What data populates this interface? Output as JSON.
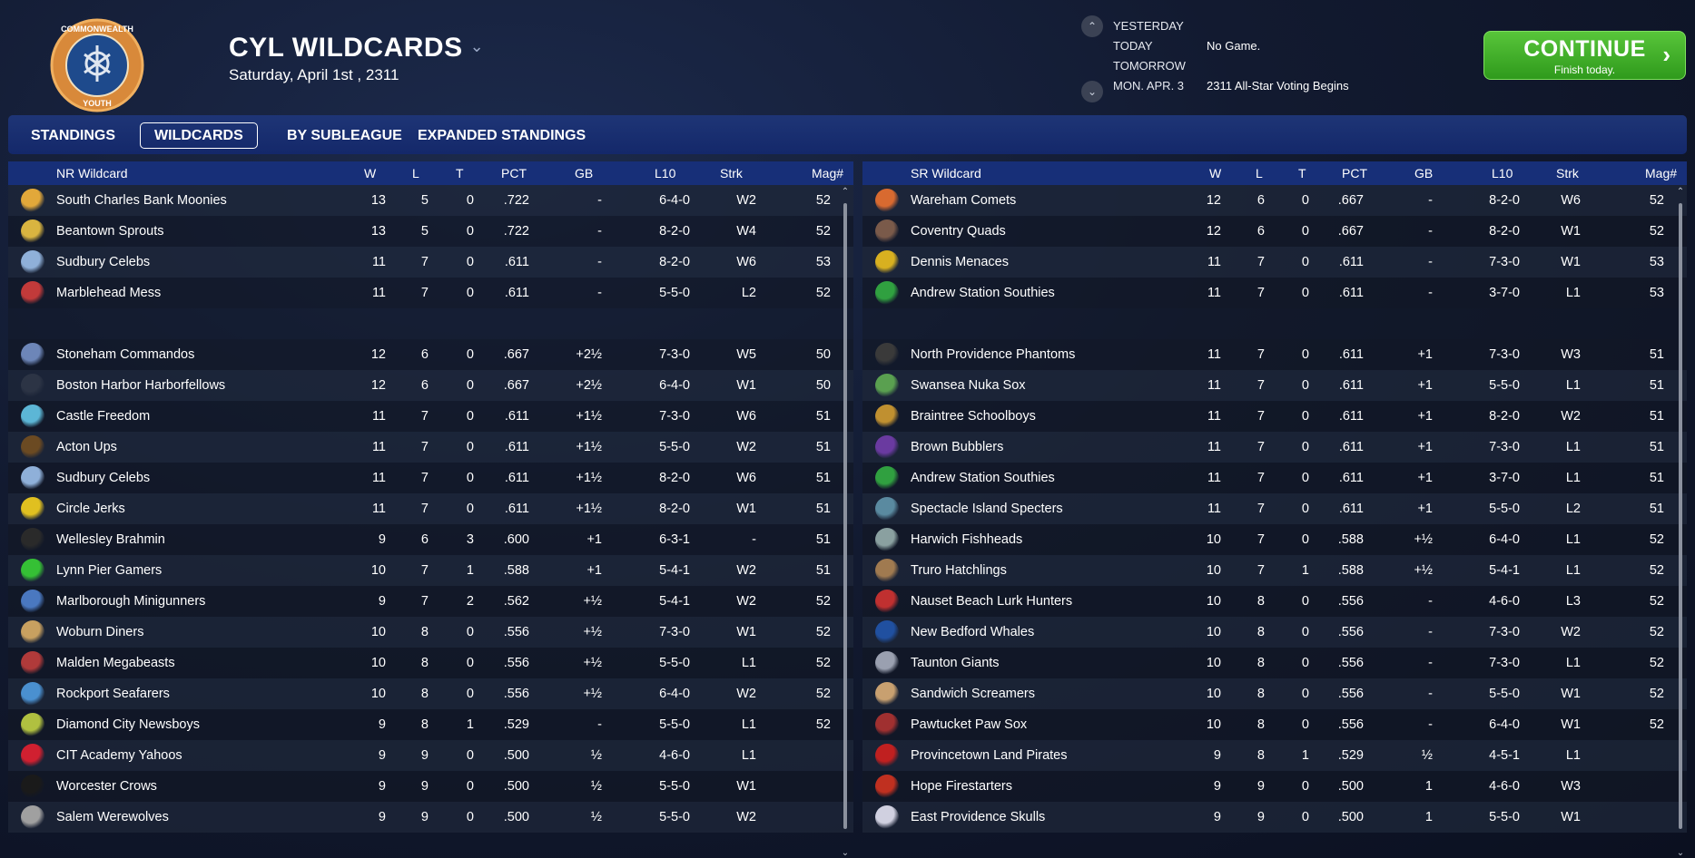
{
  "header": {
    "title": "CYL WILDCARDS",
    "date": "Saturday, April 1st , 2311",
    "logo_top_text": "COMMONWEALTH",
    "logo_bottom_text": "YOUTH"
  },
  "schedule": [
    {
      "day": "YESTERDAY",
      "info": ""
    },
    {
      "day": "TODAY",
      "info": "No Game."
    },
    {
      "day": "TOMORROW",
      "info": ""
    },
    {
      "day": "MON. APR. 3",
      "info": "2311 All-Star Voting Begins"
    }
  ],
  "continue_button": {
    "label": "CONTINUE",
    "sublabel": "Finish today."
  },
  "tabs": [
    {
      "label": "STANDINGS",
      "active": false
    },
    {
      "label": "WILDCARDS",
      "active": true
    },
    {
      "label": "BY SUBLEAGUE",
      "active": false
    },
    {
      "label": "EXPANDED STANDINGS",
      "active": false
    }
  ],
  "columns": {
    "w": "W",
    "l": "L",
    "t": "T",
    "pct": "PCT",
    "gb": "GB",
    "l10": "L10",
    "strk": "Strk",
    "mag": "Mag#"
  },
  "colors": {
    "accent_green": "#3fae29",
    "header_blue": "#172f78",
    "tabs_blue": "#1a3070"
  },
  "left_table": {
    "title": "NR  Wildcard",
    "rows": [
      {
        "team": "South Charles Bank Moonies",
        "icon": "moon-icon",
        "color": "#e2a83a",
        "w": "13",
        "l": "5",
        "t": "0",
        "pct": ".722",
        "gb": "-",
        "l10": "6-4-0",
        "strk": "W2",
        "mag": "52"
      },
      {
        "team": "Beantown Sprouts",
        "icon": "sprout-icon",
        "color": "#d9b440",
        "w": "13",
        "l": "5",
        "t": "0",
        "pct": ".722",
        "gb": "-",
        "l10": "8-2-0",
        "strk": "W4",
        "mag": "52"
      },
      {
        "team": "Sudbury Celebs",
        "icon": "celeb-icon",
        "color": "#8fb0d9",
        "w": "11",
        "l": "7",
        "t": "0",
        "pct": ".611",
        "gb": "-",
        "l10": "8-2-0",
        "strk": "W6",
        "mag": "53"
      },
      {
        "team": "Marblehead Mess",
        "icon": "mess-icon",
        "color": "#c23a3a",
        "w": "11",
        "l": "7",
        "t": "0",
        "pct": ".611",
        "gb": "-",
        "l10": "5-5-0",
        "strk": "L2",
        "mag": "52"
      },
      {
        "gap": true
      },
      {
        "team": "Stoneham Commandos",
        "icon": "commando-icon",
        "color": "#6d86b8",
        "w": "12",
        "l": "6",
        "t": "0",
        "pct": ".667",
        "gb": "+2½",
        "l10": "7-3-0",
        "strk": "W5",
        "mag": "50"
      },
      {
        "team": "Boston Harbor Harborfellows",
        "icon": "harbor-icon",
        "color": "#2c3445",
        "w": "12",
        "l": "6",
        "t": "0",
        "pct": ".667",
        "gb": "+2½",
        "l10": "6-4-0",
        "strk": "W1",
        "mag": "50"
      },
      {
        "team": "Castle Freedom",
        "icon": "castle-icon",
        "color": "#5cb6d6",
        "w": "11",
        "l": "7",
        "t": "0",
        "pct": ".611",
        "gb": "+1½",
        "l10": "7-3-0",
        "strk": "W6",
        "mag": "51"
      },
      {
        "team": "Acton Ups",
        "icon": "ups-icon",
        "color": "#6b4a22",
        "w": "11",
        "l": "7",
        "t": "0",
        "pct": ".611",
        "gb": "+1½",
        "l10": "5-5-0",
        "strk": "W2",
        "mag": "51"
      },
      {
        "team": "Sudbury Celebs",
        "icon": "celeb-icon",
        "color": "#8fb0d9",
        "w": "11",
        "l": "7",
        "t": "0",
        "pct": ".611",
        "gb": "+1½",
        "l10": "8-2-0",
        "strk": "W6",
        "mag": "51"
      },
      {
        "team": "Circle Jerks",
        "icon": "circle-icon",
        "color": "#e0c020",
        "w": "11",
        "l": "7",
        "t": "0",
        "pct": ".611",
        "gb": "+1½",
        "l10": "8-2-0",
        "strk": "W1",
        "mag": "51"
      },
      {
        "team": "Wellesley Brahmin",
        "icon": "brahmin-icon",
        "color": "#2a2a2a",
        "w": "9",
        "l": "6",
        "t": "3",
        "pct": ".600",
        "gb": "+1",
        "l10": "6-3-1",
        "strk": "-",
        "mag": "51"
      },
      {
        "team": "Lynn Pier Gamers",
        "icon": "gamer-icon",
        "color": "#35c035",
        "w": "10",
        "l": "7",
        "t": "1",
        "pct": ".588",
        "gb": "+1",
        "l10": "5-4-1",
        "strk": "W2",
        "mag": "51"
      },
      {
        "team": "Marlborough Minigunners",
        "icon": "minigun-icon",
        "color": "#4a78c0",
        "w": "9",
        "l": "7",
        "t": "2",
        "pct": ".562",
        "gb": "+½",
        "l10": "5-4-1",
        "strk": "W2",
        "mag": "52"
      },
      {
        "team": "Woburn Diners",
        "icon": "diner-icon",
        "color": "#c8a060",
        "w": "10",
        "l": "8",
        "t": "0",
        "pct": ".556",
        "gb": "+½",
        "l10": "7-3-0",
        "strk": "W1",
        "mag": "52"
      },
      {
        "team": "Malden Megabeasts",
        "icon": "beast-icon",
        "color": "#b03a3a",
        "w": "10",
        "l": "8",
        "t": "0",
        "pct": ".556",
        "gb": "+½",
        "l10": "5-5-0",
        "strk": "L1",
        "mag": "52"
      },
      {
        "team": "Rockport Seafarers",
        "icon": "anchor-icon",
        "color": "#4a90d0",
        "w": "10",
        "l": "8",
        "t": "0",
        "pct": ".556",
        "gb": "+½",
        "l10": "6-4-0",
        "strk": "W2",
        "mag": "52"
      },
      {
        "team": "Diamond City Newsboys",
        "icon": "newsboy-icon",
        "color": "#b0c040",
        "w": "9",
        "l": "8",
        "t": "1",
        "pct": ".529",
        "gb": "-",
        "l10": "5-5-0",
        "strk": "L1",
        "mag": "52"
      },
      {
        "team": "CIT Academy Yahoos",
        "icon": "skull-icon",
        "color": "#d02030",
        "w": "9",
        "l": "9",
        "t": "0",
        "pct": ".500",
        "gb": "½",
        "l10": "4-6-0",
        "strk": "L1",
        "mag": ""
      },
      {
        "team": "Worcester Crows",
        "icon": "crow-icon",
        "color": "#1a1a1a",
        "w": "9",
        "l": "9",
        "t": "0",
        "pct": ".500",
        "gb": "½",
        "l10": "5-5-0",
        "strk": "W1",
        "mag": ""
      },
      {
        "team": "Salem Werewolves",
        "icon": "werewolf-icon",
        "color": "#a0a0a0",
        "w": "9",
        "l": "9",
        "t": "0",
        "pct": ".500",
        "gb": "½",
        "l10": "5-5-0",
        "strk": "W2",
        "mag": ""
      }
    ]
  },
  "right_table": {
    "title": "SR  Wildcard",
    "rows": [
      {
        "team": "Wareham Comets",
        "icon": "comet-icon",
        "color": "#d86a30",
        "w": "12",
        "l": "6",
        "t": "0",
        "pct": ".667",
        "gb": "-",
        "l10": "8-2-0",
        "strk": "W6",
        "mag": "52"
      },
      {
        "team": "Coventry Quads",
        "icon": "quad-icon",
        "color": "#7a5a4a",
        "w": "12",
        "l": "6",
        "t": "0",
        "pct": ".667",
        "gb": "-",
        "l10": "8-2-0",
        "strk": "W1",
        "mag": "52"
      },
      {
        "team": "Dennis Menaces",
        "icon": "menace-icon",
        "color": "#d8b020",
        "w": "11",
        "l": "7",
        "t": "0",
        "pct": ".611",
        "gb": "-",
        "l10": "7-3-0",
        "strk": "W1",
        "mag": "53"
      },
      {
        "team": "Andrew Station Southies",
        "icon": "clover-icon",
        "color": "#30a040",
        "w": "11",
        "l": "7",
        "t": "0",
        "pct": ".611",
        "gb": "-",
        "l10": "3-7-0",
        "strk": "L1",
        "mag": "53"
      },
      {
        "gap": true
      },
      {
        "team": "North Providence Phantoms",
        "icon": "phantom-icon",
        "color": "#3a3a3a",
        "w": "11",
        "l": "7",
        "t": "0",
        "pct": ".611",
        "gb": "+1",
        "l10": "7-3-0",
        "strk": "W3",
        "mag": "51"
      },
      {
        "team": "Swansea Nuka Sox",
        "icon": "sox-icon",
        "color": "#5aa050",
        "w": "11",
        "l": "7",
        "t": "0",
        "pct": ".611",
        "gb": "+1",
        "l10": "5-5-0",
        "strk": "L1",
        "mag": "51"
      },
      {
        "team": "Braintree Schoolboys",
        "icon": "schoolboy-icon",
        "color": "#c09030",
        "w": "11",
        "l": "7",
        "t": "0",
        "pct": ".611",
        "gb": "+1",
        "l10": "8-2-0",
        "strk": "W2",
        "mag": "51"
      },
      {
        "team": "Brown Bubblers",
        "icon": "bubbler-icon",
        "color": "#6a3aa0",
        "w": "11",
        "l": "7",
        "t": "0",
        "pct": ".611",
        "gb": "+1",
        "l10": "7-3-0",
        "strk": "L1",
        "mag": "51"
      },
      {
        "team": "Andrew Station Southies",
        "icon": "clover-icon",
        "color": "#30a040",
        "w": "11",
        "l": "7",
        "t": "0",
        "pct": ".611",
        "gb": "+1",
        "l10": "3-7-0",
        "strk": "L1",
        "mag": "51"
      },
      {
        "team": "Spectacle Island Specters",
        "icon": "specter-icon",
        "color": "#5a8aa0",
        "w": "11",
        "l": "7",
        "t": "0",
        "pct": ".611",
        "gb": "+1",
        "l10": "5-5-0",
        "strk": "L2",
        "mag": "51"
      },
      {
        "team": "Harwich Fishheads",
        "icon": "fish-icon",
        "color": "#8aa0a0",
        "w": "10",
        "l": "7",
        "t": "0",
        "pct": ".588",
        "gb": "+½",
        "l10": "6-4-0",
        "strk": "L1",
        "mag": "52"
      },
      {
        "team": "Truro Hatchlings",
        "icon": "hatchling-icon",
        "color": "#a07a50",
        "w": "10",
        "l": "7",
        "t": "1",
        "pct": ".588",
        "gb": "+½",
        "l10": "5-4-1",
        "strk": "L1",
        "mag": "52"
      },
      {
        "team": "Nauset Beach Lurk Hunters",
        "icon": "lurk-icon",
        "color": "#c03030",
        "w": "10",
        "l": "8",
        "t": "0",
        "pct": ".556",
        "gb": "-",
        "l10": "4-6-0",
        "strk": "L3",
        "mag": "52"
      },
      {
        "team": "New Bedford Whales",
        "icon": "whale-icon",
        "color": "#2050a0",
        "w": "10",
        "l": "8",
        "t": "0",
        "pct": ".556",
        "gb": "-",
        "l10": "7-3-0",
        "strk": "W2",
        "mag": "52"
      },
      {
        "team": "Taunton Giants",
        "icon": "giant-icon",
        "color": "#9aa0b0",
        "w": "10",
        "l": "8",
        "t": "0",
        "pct": ".556",
        "gb": "-",
        "l10": "7-3-0",
        "strk": "L1",
        "mag": "52"
      },
      {
        "team": "Sandwich Screamers",
        "icon": "screamer-icon",
        "color": "#c8a070",
        "w": "10",
        "l": "8",
        "t": "0",
        "pct": ".556",
        "gb": "-",
        "l10": "5-5-0",
        "strk": "W1",
        "mag": "52"
      },
      {
        "team": "Pawtucket Paw Sox",
        "icon": "paw-icon",
        "color": "#a03030",
        "w": "10",
        "l": "8",
        "t": "0",
        "pct": ".556",
        "gb": "-",
        "l10": "6-4-0",
        "strk": "W1",
        "mag": "52"
      },
      {
        "team": "Provincetown Land Pirates",
        "icon": "pirate-icon",
        "color": "#c02020",
        "w": "9",
        "l": "8",
        "t": "1",
        "pct": ".529",
        "gb": "½",
        "l10": "4-5-1",
        "strk": "L1",
        "mag": ""
      },
      {
        "team": "Hope Firestarters",
        "icon": "fire-icon",
        "color": "#c03020",
        "w": "9",
        "l": "9",
        "t": "0",
        "pct": ".500",
        "gb": "1",
        "l10": "4-6-0",
        "strk": "W3",
        "mag": ""
      },
      {
        "team": "East Providence Skulls",
        "icon": "skull-icon",
        "color": "#d0d0e0",
        "w": "9",
        "l": "9",
        "t": "0",
        "pct": ".500",
        "gb": "1",
        "l10": "5-5-0",
        "strk": "W1",
        "mag": ""
      }
    ]
  }
}
